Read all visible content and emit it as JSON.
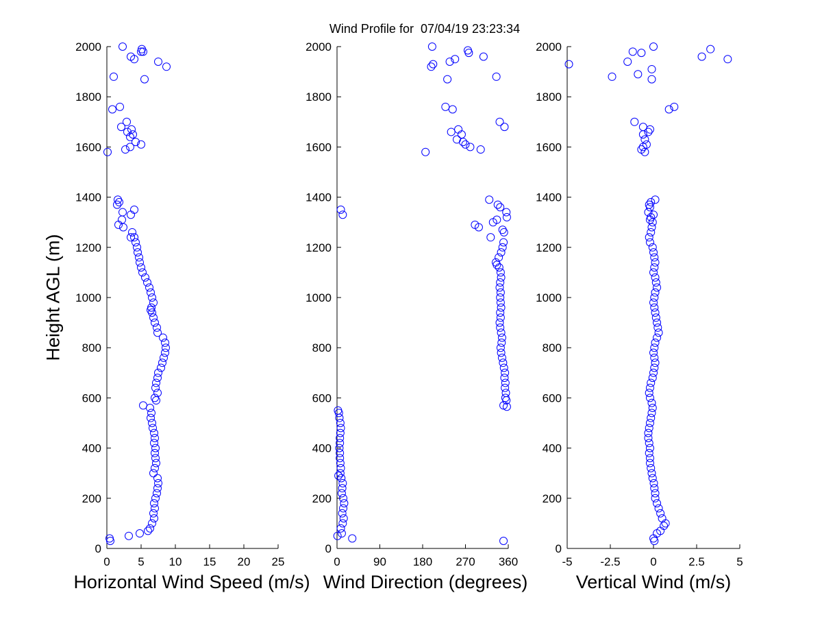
{
  "figure": {
    "title": "Wind Profile for  07/04/19 23:23:34",
    "ylabel": "Height AGL (m)"
  },
  "colors": {
    "marker": "#0000ff",
    "axes": "#000000",
    "background": "#ffffff"
  },
  "chart_data": [
    {
      "type": "scatter",
      "xlabel": "Horizontal Wind Speed (m/s)",
      "ylabel": "Height AGL (m)",
      "xlim": [
        0,
        25
      ],
      "ylim": [
        0,
        2000
      ],
      "xticks": [
        0,
        5,
        10,
        15,
        20,
        25
      ],
      "xtick_labels": [
        "0",
        "5",
        "10",
        "15",
        "20",
        "25"
      ],
      "yticks": [
        0,
        200,
        400,
        600,
        800,
        1000,
        1200,
        1400,
        1600,
        1800,
        2000
      ],
      "ytick_labels": [
        "0",
        "200",
        "400",
        "600",
        "800",
        "1000",
        "1200",
        "1400",
        "1600",
        "1800",
        "2000"
      ],
      "grid": false,
      "legend": "none",
      "points": [
        [
          0.5,
          30
        ],
        [
          0.4,
          40
        ],
        [
          3.2,
          50
        ],
        [
          4.8,
          60
        ],
        [
          6.0,
          70
        ],
        [
          6.3,
          80
        ],
        [
          6.6,
          100
        ],
        [
          6.9,
          120
        ],
        [
          6.8,
          140
        ],
        [
          7.0,
          160
        ],
        [
          6.9,
          180
        ],
        [
          7.1,
          200
        ],
        [
          7.3,
          220
        ],
        [
          7.4,
          240
        ],
        [
          7.5,
          260
        ],
        [
          7.4,
          280
        ],
        [
          6.8,
          300
        ],
        [
          7.0,
          320
        ],
        [
          7.2,
          340
        ],
        [
          7.1,
          360
        ],
        [
          7.0,
          380
        ],
        [
          7.1,
          400
        ],
        [
          6.9,
          420
        ],
        [
          7.0,
          440
        ],
        [
          6.9,
          460
        ],
        [
          6.7,
          480
        ],
        [
          6.6,
          500
        ],
        [
          6.4,
          520
        ],
        [
          6.5,
          540
        ],
        [
          6.3,
          560
        ],
        [
          5.3,
          570
        ],
        [
          7.2,
          590
        ],
        [
          7.0,
          600
        ],
        [
          7.4,
          620
        ],
        [
          7.1,
          640
        ],
        [
          7.2,
          660
        ],
        [
          7.4,
          680
        ],
        [
          7.5,
          700
        ],
        [
          7.9,
          720
        ],
        [
          8.1,
          740
        ],
        [
          8.3,
          760
        ],
        [
          8.5,
          780
        ],
        [
          8.6,
          800
        ],
        [
          8.5,
          820
        ],
        [
          8.2,
          840
        ],
        [
          7.4,
          860
        ],
        [
          7.3,
          880
        ],
        [
          7.0,
          900
        ],
        [
          6.8,
          920
        ],
        [
          6.6,
          940
        ],
        [
          6.4,
          950
        ],
        [
          6.5,
          960
        ],
        [
          6.8,
          980
        ],
        [
          6.6,
          1000
        ],
        [
          6.4,
          1020
        ],
        [
          6.2,
          1040
        ],
        [
          5.9,
          1060
        ],
        [
          5.6,
          1080
        ],
        [
          5.2,
          1100
        ],
        [
          5.0,
          1120
        ],
        [
          4.8,
          1140
        ],
        [
          4.7,
          1160
        ],
        [
          4.5,
          1180
        ],
        [
          4.4,
          1200
        ],
        [
          4.2,
          1220
        ],
        [
          4.0,
          1240
        ],
        [
          3.5,
          1240
        ],
        [
          3.7,
          1260
        ],
        [
          2.4,
          1280
        ],
        [
          1.7,
          1290
        ],
        [
          2.2,
          1310
        ],
        [
          3.5,
          1330
        ],
        [
          2.3,
          1340
        ],
        [
          4.0,
          1350
        ],
        [
          1.5,
          1370
        ],
        [
          1.8,
          1380
        ],
        [
          1.6,
          1390
        ],
        [
          0.1,
          1580
        ],
        [
          2.7,
          1590
        ],
        [
          3.4,
          1600
        ],
        [
          4.2,
          1620
        ],
        [
          5.0,
          1610
        ],
        [
          3.4,
          1640
        ],
        [
          3.8,
          1650
        ],
        [
          3.0,
          1660
        ],
        [
          2.1,
          1680
        ],
        [
          3.6,
          1670
        ],
        [
          2.9,
          1700
        ],
        [
          0.8,
          1750
        ],
        [
          1.9,
          1760
        ],
        [
          5.5,
          1870
        ],
        [
          1.0,
          1880
        ],
        [
          8.7,
          1920
        ],
        [
          7.5,
          1940
        ],
        [
          4.0,
          1950
        ],
        [
          3.5,
          1960
        ],
        [
          5.0,
          1980
        ],
        [
          5.3,
          1980
        ],
        [
          5.1,
          1990
        ],
        [
          2.3,
          2000
        ]
      ]
    },
    {
      "type": "scatter",
      "xlabel": "Wind Direction (degrees)",
      "ylabel": "",
      "xlim": [
        0,
        360
      ],
      "ylim": [
        0,
        2000
      ],
      "xticks": [
        0,
        90,
        180,
        270,
        360
      ],
      "xtick_labels": [
        "0",
        "90",
        "180",
        "270",
        "360"
      ],
      "yticks": [
        0,
        200,
        400,
        600,
        800,
        1000,
        1200,
        1400,
        1600,
        1800,
        2000
      ],
      "ytick_labels": [
        "0",
        "200",
        "400",
        "600",
        "800",
        "1000",
        "1200",
        "1400",
        "1600",
        "1800",
        "2000"
      ],
      "grid": false,
      "legend": "none",
      "points": [
        [
          350,
          30
        ],
        [
          32,
          40
        ],
        [
          1,
          50
        ],
        [
          10,
          60
        ],
        [
          8,
          80
        ],
        [
          12,
          100
        ],
        [
          14,
          120
        ],
        [
          11,
          140
        ],
        [
          13,
          160
        ],
        [
          15,
          180
        ],
        [
          13,
          200
        ],
        [
          10,
          220
        ],
        [
          11,
          240
        ],
        [
          12,
          260
        ],
        [
          9,
          280
        ],
        [
          3,
          290
        ],
        [
          7,
          300
        ],
        [
          8,
          320
        ],
        [
          7,
          340
        ],
        [
          6,
          360
        ],
        [
          6,
          380
        ],
        [
          5,
          400
        ],
        [
          6,
          420
        ],
        [
          6,
          440
        ],
        [
          7,
          460
        ],
        [
          8,
          480
        ],
        [
          7,
          500
        ],
        [
          5,
          520
        ],
        [
          4,
          540
        ],
        [
          2,
          550
        ],
        [
          350,
          570
        ],
        [
          357,
          565
        ],
        [
          356,
          590
        ],
        [
          354,
          600
        ],
        [
          355,
          620
        ],
        [
          353,
          640
        ],
        [
          354,
          660
        ],
        [
          352,
          680
        ],
        [
          353,
          700
        ],
        [
          351,
          720
        ],
        [
          349,
          740
        ],
        [
          347,
          760
        ],
        [
          345,
          780
        ],
        [
          344,
          800
        ],
        [
          346,
          820
        ],
        [
          347,
          840
        ],
        [
          345,
          860
        ],
        [
          343,
          880
        ],
        [
          342,
          900
        ],
        [
          344,
          920
        ],
        [
          343,
          940
        ],
        [
          345,
          960
        ],
        [
          344,
          980
        ],
        [
          343,
          1000
        ],
        [
          344,
          1020
        ],
        [
          342,
          1040
        ],
        [
          343,
          1060
        ],
        [
          345,
          1080
        ],
        [
          344,
          1100
        ],
        [
          341,
          1120
        ],
        [
          336,
          1130
        ],
        [
          334,
          1140
        ],
        [
          340,
          1160
        ],
        [
          345,
          1180
        ],
        [
          348,
          1200
        ],
        [
          350,
          1220
        ],
        [
          323,
          1240
        ],
        [
          351,
          1260
        ],
        [
          348,
          1270
        ],
        [
          298,
          1280
        ],
        [
          290,
          1290
        ],
        [
          328,
          1300
        ],
        [
          336,
          1310
        ],
        [
          357,
          1320
        ],
        [
          12,
          1330
        ],
        [
          356,
          1340
        ],
        [
          8,
          1350
        ],
        [
          343,
          1360
        ],
        [
          338,
          1370
        ],
        [
          320,
          1390
        ],
        [
          186,
          1580
        ],
        [
          302,
          1590
        ],
        [
          280,
          1600
        ],
        [
          270,
          1610
        ],
        [
          265,
          1620
        ],
        [
          252,
          1630
        ],
        [
          262,
          1650
        ],
        [
          240,
          1660
        ],
        [
          255,
          1670
        ],
        [
          352,
          1680
        ],
        [
          342,
          1700
        ],
        [
          243,
          1750
        ],
        [
          228,
          1760
        ],
        [
          232,
          1870
        ],
        [
          335,
          1880
        ],
        [
          198,
          1920
        ],
        [
          202,
          1930
        ],
        [
          237,
          1940
        ],
        [
          248,
          1950
        ],
        [
          308,
          1960
        ],
        [
          277,
          1975
        ],
        [
          275,
          1985
        ],
        [
          200,
          2000
        ]
      ]
    },
    {
      "type": "scatter",
      "xlabel": "Vertical Wind (m/s)",
      "ylabel": "",
      "xlim": [
        -5,
        5
      ],
      "ylim": [
        0,
        2000
      ],
      "xticks": [
        -5,
        -2.5,
        0,
        2.5,
        5
      ],
      "xtick_labels": [
        "-5",
        "-2.5",
        "0",
        "2.5",
        "5"
      ],
      "yticks": [
        0,
        200,
        400,
        600,
        800,
        1000,
        1200,
        1400,
        1600,
        1800,
        2000
      ],
      "ytick_labels": [
        "0",
        "200",
        "400",
        "600",
        "800",
        "1000",
        "1200",
        "1400",
        "1600",
        "1800",
        "2000"
      ],
      "grid": false,
      "legend": "none",
      "points": [
        [
          0.05,
          30
        ],
        [
          0.0,
          40
        ],
        [
          0.2,
          60
        ],
        [
          0.4,
          70
        ],
        [
          0.6,
          90
        ],
        [
          0.7,
          100
        ],
        [
          0.5,
          120
        ],
        [
          0.4,
          140
        ],
        [
          0.3,
          160
        ],
        [
          0.2,
          180
        ],
        [
          0.1,
          200
        ],
        [
          0.1,
          220
        ],
        [
          0.05,
          240
        ],
        [
          0.02,
          260
        ],
        [
          -0.05,
          280
        ],
        [
          -0.1,
          300
        ],
        [
          -0.15,
          320
        ],
        [
          -0.2,
          340
        ],
        [
          -0.2,
          360
        ],
        [
          -0.25,
          380
        ],
        [
          -0.2,
          400
        ],
        [
          -0.25,
          420
        ],
        [
          -0.3,
          440
        ],
        [
          -0.3,
          460
        ],
        [
          -0.25,
          480
        ],
        [
          -0.2,
          500
        ],
        [
          -0.15,
          520
        ],
        [
          -0.1,
          540
        ],
        [
          -0.05,
          560
        ],
        [
          -0.1,
          580
        ],
        [
          -0.2,
          600
        ],
        [
          -0.25,
          620
        ],
        [
          -0.2,
          640
        ],
        [
          -0.15,
          660
        ],
        [
          -0.05,
          680
        ],
        [
          0.0,
          700
        ],
        [
          0.05,
          720
        ],
        [
          0.1,
          740
        ],
        [
          0.05,
          760
        ],
        [
          0.0,
          780
        ],
        [
          0.05,
          800
        ],
        [
          0.1,
          820
        ],
        [
          0.2,
          840
        ],
        [
          0.3,
          860
        ],
        [
          0.25,
          880
        ],
        [
          0.2,
          900
        ],
        [
          0.15,
          920
        ],
        [
          0.1,
          940
        ],
        [
          0.05,
          960
        ],
        [
          0.0,
          980
        ],
        [
          0.05,
          1000
        ],
        [
          0.1,
          1020
        ],
        [
          0.2,
          1040
        ],
        [
          0.15,
          1060
        ],
        [
          0.1,
          1080
        ],
        [
          0.0,
          1100
        ],
        [
          0.05,
          1120
        ],
        [
          0.1,
          1140
        ],
        [
          0.05,
          1160
        ],
        [
          0.0,
          1180
        ],
        [
          -0.05,
          1200
        ],
        [
          -0.2,
          1220
        ],
        [
          -0.25,
          1240
        ],
        [
          -0.15,
          1260
        ],
        [
          -0.1,
          1280
        ],
        [
          -0.05,
          1300
        ],
        [
          -0.2,
          1310
        ],
        [
          -0.15,
          1320
        ],
        [
          0.0,
          1330
        ],
        [
          -0.3,
          1340
        ],
        [
          -0.2,
          1360
        ],
        [
          -0.25,
          1370
        ],
        [
          -0.15,
          1380
        ],
        [
          0.1,
          1390
        ],
        [
          -0.5,
          1580
        ],
        [
          -0.7,
          1590
        ],
        [
          -0.6,
          1600
        ],
        [
          -0.4,
          1610
        ],
        [
          -0.5,
          1630
        ],
        [
          -0.6,
          1650
        ],
        [
          -0.3,
          1660
        ],
        [
          -0.2,
          1670
        ],
        [
          -0.6,
          1680
        ],
        [
          -1.1,
          1700
        ],
        [
          0.9,
          1750
        ],
        [
          1.2,
          1760
        ],
        [
          -0.1,
          1870
        ],
        [
          -2.4,
          1880
        ],
        [
          -0.9,
          1890
        ],
        [
          -0.1,
          1910
        ],
        [
          -4.9,
          1930
        ],
        [
          -1.5,
          1940
        ],
        [
          4.3,
          1950
        ],
        [
          2.8,
          1960
        ],
        [
          -0.7,
          1975
        ],
        [
          -1.2,
          1980
        ],
        [
          3.3,
          1990
        ],
        [
          0.0,
          2000
        ]
      ]
    }
  ]
}
